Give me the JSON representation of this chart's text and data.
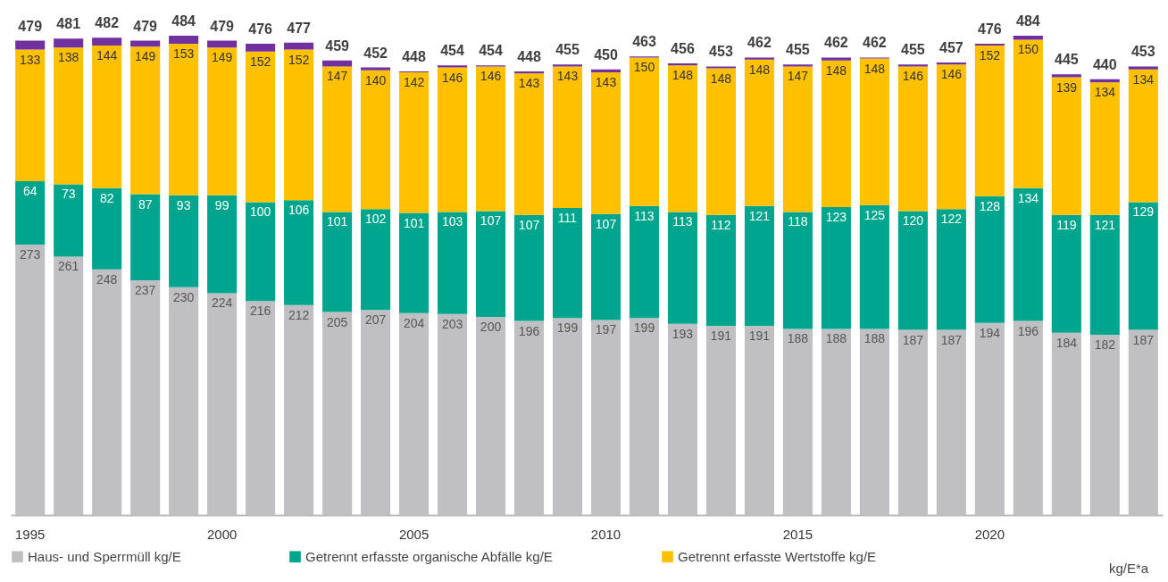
{
  "chart_data": {
    "type": "bar",
    "stacked": true,
    "data_labels": true,
    "legend": "bottom",
    "categories": [
      "1995",
      null,
      null,
      null,
      null,
      "2000",
      null,
      null,
      null,
      null,
      "2005",
      null,
      null,
      null,
      null,
      "2010",
      null,
      null,
      null,
      null,
      "2015",
      null,
      null,
      null,
      null,
      "2020",
      null,
      null,
      null,
      null
    ],
    "series": [
      {
        "name": "Haus- und Sperrmüll kg/E",
        "color": "#c0c0c4",
        "values": [
          273,
          261,
          248,
          237,
          230,
          224,
          216,
          212,
          205,
          207,
          204,
          203,
          200,
          196,
          199,
          197,
          199,
          193,
          191,
          191,
          188,
          188,
          188,
          187,
          187,
          194,
          196,
          184,
          182,
          187
        ]
      },
      {
        "name": "Getrennt erfasste organische Abfälle kg/E",
        "color": "#00a58e",
        "values": [
          64,
          73,
          82,
          87,
          93,
          99,
          100,
          106,
          101,
          102,
          101,
          103,
          107,
          107,
          111,
          107,
          113,
          113,
          112,
          121,
          118,
          123,
          125,
          120,
          122,
          128,
          134,
          119,
          121,
          129
        ]
      },
      {
        "name": "Getrennt erfasste Wertstoffe kg/E",
        "color": "#ffc000",
        "values": [
          133,
          138,
          144,
          149,
          153,
          149,
          152,
          152,
          147,
          140,
          142,
          146,
          146,
          143,
          143,
          143,
          150,
          148,
          148,
          148,
          147,
          148,
          148,
          146,
          146,
          152,
          150,
          139,
          134,
          134
        ]
      },
      {
        "color": "#7030a0",
        "data_labels": false,
        "values": [
          9,
          9,
          8,
          6,
          8,
          7,
          8,
          7,
          6,
          3,
          1,
          2,
          1,
          2,
          2,
          3,
          1,
          2,
          2,
          2,
          2,
          3,
          1,
          2,
          2,
          2,
          4,
          3,
          3,
          3
        ]
      }
    ],
    "totals": [
      "479",
      "481",
      "482",
      "479",
      "484",
      "479",
      "476",
      "477",
      "459",
      "452",
      "448",
      "454",
      "454",
      "448",
      "455",
      "450",
      "463",
      "456",
      "453",
      "462",
      "455",
      "462",
      "462",
      "455",
      "457",
      "476",
      "484",
      "445",
      "440",
      "453"
    ],
    "annotations": [
      "kg/E*a"
    ]
  }
}
